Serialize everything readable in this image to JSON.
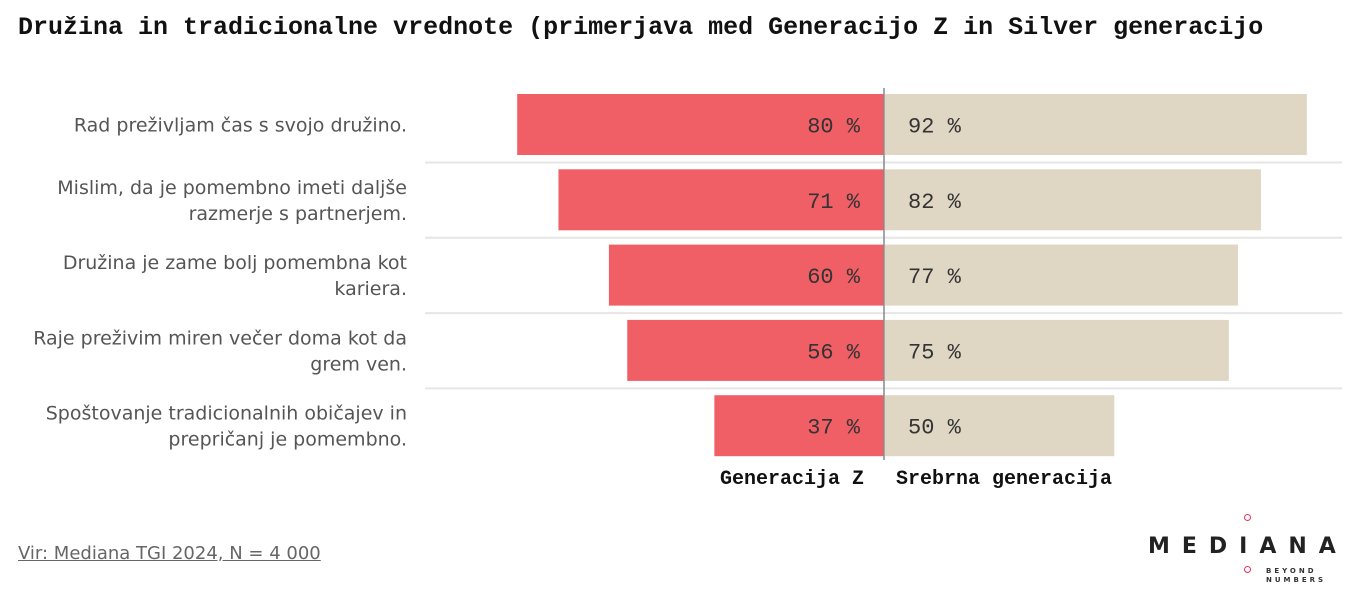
{
  "title": "Družina in tradicionalne vrednote (primerjava med Generacijo Z in Silver generacijo",
  "source": "Vir: Mediana TGI 2024, N = 4 000",
  "logo": {
    "main": "MEDIANA",
    "sub_line1": "BEYOND",
    "sub_line2": "NUMBERS",
    "accent_color": "#e0355a"
  },
  "chart_data": {
    "type": "bar",
    "orientation": "diverging-horizontal",
    "categories": [
      [
        "Rad preživljam čas s svojo družino."
      ],
      [
        "Mislim, da je pomembno imeti daljše",
        "razmerje s partnerjem."
      ],
      [
        "Družina je zame bolj pomembna kot",
        "kariera."
      ],
      [
        "Raje preživim miren večer doma kot da",
        "grem ven."
      ],
      [
        "Spoštovanje tradicionalnih običajev in",
        "prepričanj je pomembno."
      ]
    ],
    "series": [
      {
        "name": "Generacija Z",
        "values": [
          80,
          71,
          60,
          56,
          37
        ],
        "color": "#f05f66",
        "side": "left"
      },
      {
        "name": "Srebrna generacija",
        "values": [
          92,
          82,
          77,
          75,
          50
        ],
        "color": "#dfd6c4",
        "side": "right"
      }
    ],
    "value_suffix": " %",
    "xlim": [
      0,
      100
    ],
    "grid": false
  }
}
